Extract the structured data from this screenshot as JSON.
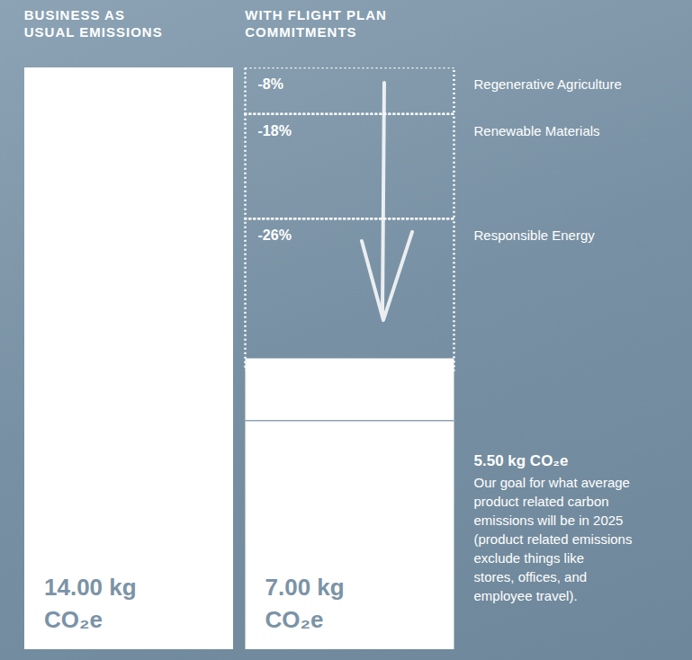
{
  "chart_data": {
    "type": "bar",
    "stacked": true,
    "data_labels": true,
    "tick_labels": "x",
    "categories": [
      "BUSINESS AS USUAL EMISSIONS",
      "WITH FLIGHT PLAN COMMITMENTS"
    ],
    "values": [
      14,
      7
    ],
    "value_labels": [
      "14.00 kg CO₂e",
      "7.00 kg CO₂e"
    ],
    "color": "#ffffff",
    "ylim": [
      0,
      14
    ],
    "y2lim": [
      -100,
      0
    ],
    "series": [
      {
        "name": "Regenerative Agriculture",
        "values": [
          null,
          -8
        ],
        "value_labels": [
          null,
          "-8%"
        ],
        "axis": "y2",
        "color": "#ffffff",
        "line_style": "dotted"
      },
      {
        "name": "Renewable Materials",
        "values": [
          null,
          -18
        ],
        "value_labels": [
          null,
          "-18%"
        ],
        "axis": "y2",
        "color": "#ffffff",
        "line_style": "dotted"
      },
      {
        "name": "Responsible Energy",
        "values": [
          null,
          -26
        ],
        "value_labels": [
          null,
          "-26%"
        ],
        "axis": "y2",
        "color": "#ffffff",
        "line_style": "dotted"
      }
    ],
    "goal": {
      "value": 5.5,
      "label": "5.50 kg CO₂e",
      "text": "Our goal for what average product related carbon emissions will be in 2025 (product related emissions exclude things like stores, offices, and employee travel)."
    }
  }
}
